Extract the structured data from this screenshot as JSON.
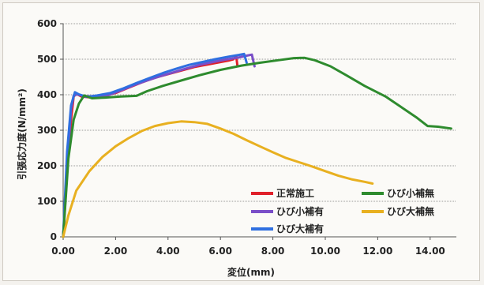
{
  "chart_data": {
    "type": "line",
    "xlabel": "変位(mm)",
    "ylabel": "引張応力度(N/mm²)",
    "xlim": [
      0,
      15
    ],
    "ylim": [
      0,
      600
    ],
    "x_ticks": [
      "0.00",
      "2.00",
      "4.00",
      "6.00",
      "8.00",
      "10.00",
      "12.00",
      "14.00"
    ],
    "x_tick_values": [
      0,
      2,
      4,
      6,
      8,
      10,
      12,
      14
    ],
    "y_ticks": [
      "0",
      "100",
      "200",
      "300",
      "400",
      "500",
      "600"
    ],
    "y_tick_values": [
      0,
      100,
      200,
      300,
      400,
      500,
      600
    ],
    "grid": true,
    "legend_position": "bottom-center",
    "series": [
      {
        "name": "正常施工",
        "color": "#e0202a",
        "points": [
          [
            0,
            0
          ],
          [
            0.15,
            180
          ],
          [
            0.3,
            330
          ],
          [
            0.4,
            395
          ],
          [
            0.5,
            403
          ],
          [
            0.7,
            395
          ],
          [
            1.0,
            393
          ],
          [
            1.5,
            397
          ],
          [
            2.0,
            405
          ],
          [
            2.5,
            420
          ],
          [
            3.0,
            435
          ],
          [
            3.5,
            448
          ],
          [
            4.0,
            458
          ],
          [
            4.5,
            468
          ],
          [
            5.0,
            478
          ],
          [
            5.5,
            485
          ],
          [
            6.0,
            492
          ],
          [
            6.3,
            496
          ],
          [
            6.5,
            500
          ],
          [
            6.6,
            510
          ],
          [
            6.65,
            480
          ]
        ]
      },
      {
        "name": "ひび小補有",
        "color": "#7a4fc8",
        "points": [
          [
            0,
            0
          ],
          [
            0.15,
            200
          ],
          [
            0.3,
            360
          ],
          [
            0.4,
            398
          ],
          [
            0.55,
            401
          ],
          [
            0.8,
            396
          ],
          [
            1.2,
            395
          ],
          [
            1.7,
            398
          ],
          [
            2.2,
            412
          ],
          [
            2.7,
            427
          ],
          [
            3.2,
            440
          ],
          [
            3.7,
            452
          ],
          [
            4.2,
            463
          ],
          [
            4.7,
            474
          ],
          [
            5.2,
            484
          ],
          [
            5.7,
            492
          ],
          [
            6.2,
            499
          ],
          [
            6.7,
            505
          ],
          [
            7.0,
            510
          ],
          [
            7.2,
            513
          ],
          [
            7.3,
            480
          ]
        ]
      },
      {
        "name": "ひび大補有",
        "color": "#2f6fe0",
        "points": [
          [
            0,
            0
          ],
          [
            0.15,
            240
          ],
          [
            0.3,
            370
          ],
          [
            0.45,
            407
          ],
          [
            0.6,
            401
          ],
          [
            0.9,
            394
          ],
          [
            1.3,
            398
          ],
          [
            1.8,
            405
          ],
          [
            2.3,
            418
          ],
          [
            2.8,
            433
          ],
          [
            3.3,
            447
          ],
          [
            3.8,
            461
          ],
          [
            4.3,
            473
          ],
          [
            4.8,
            484
          ],
          [
            5.3,
            492
          ],
          [
            5.8,
            500
          ],
          [
            6.3,
            507
          ],
          [
            6.7,
            512
          ],
          [
            6.9,
            515
          ],
          [
            7.0,
            490
          ]
        ]
      },
      {
        "name": "ひび小補無",
        "color": "#2e8b2e",
        "points": [
          [
            0,
            0
          ],
          [
            0.2,
            220
          ],
          [
            0.4,
            330
          ],
          [
            0.6,
            375
          ],
          [
            0.8,
            398
          ],
          [
            1.1,
            390
          ],
          [
            1.6,
            392
          ],
          [
            2.2,
            395
          ],
          [
            2.8,
            397
          ],
          [
            3.2,
            410
          ],
          [
            3.8,
            425
          ],
          [
            4.5,
            440
          ],
          [
            5.2,
            455
          ],
          [
            6.0,
            470
          ],
          [
            6.8,
            482
          ],
          [
            7.5,
            490
          ],
          [
            8.2,
            497
          ],
          [
            8.8,
            503
          ],
          [
            9.2,
            504
          ],
          [
            9.6,
            497
          ],
          [
            10.2,
            480
          ],
          [
            10.8,
            455
          ],
          [
            11.5,
            425
          ],
          [
            12.3,
            395
          ],
          [
            13.0,
            360
          ],
          [
            13.5,
            335
          ],
          [
            13.9,
            312
          ],
          [
            14.3,
            310
          ],
          [
            14.8,
            305
          ]
        ]
      },
      {
        "name": "ひび大補無",
        "color": "#e8b020",
        "points": [
          [
            0,
            0
          ],
          [
            0.2,
            60
          ],
          [
            0.5,
            130
          ],
          [
            1.0,
            185
          ],
          [
            1.5,
            225
          ],
          [
            2.0,
            255
          ],
          [
            2.5,
            278
          ],
          [
            3.0,
            298
          ],
          [
            3.5,
            312
          ],
          [
            4.0,
            320
          ],
          [
            4.5,
            325
          ],
          [
            5.0,
            323
          ],
          [
            5.5,
            318
          ],
          [
            6.0,
            305
          ],
          [
            6.5,
            290
          ],
          [
            7.0,
            272
          ],
          [
            7.5,
            255
          ],
          [
            8.0,
            238
          ],
          [
            8.5,
            222
          ],
          [
            9.0,
            210
          ],
          [
            9.5,
            198
          ],
          [
            10.0,
            185
          ],
          [
            10.5,
            172
          ],
          [
            11.0,
            162
          ],
          [
            11.5,
            155
          ],
          [
            11.8,
            150
          ]
        ]
      }
    ]
  }
}
